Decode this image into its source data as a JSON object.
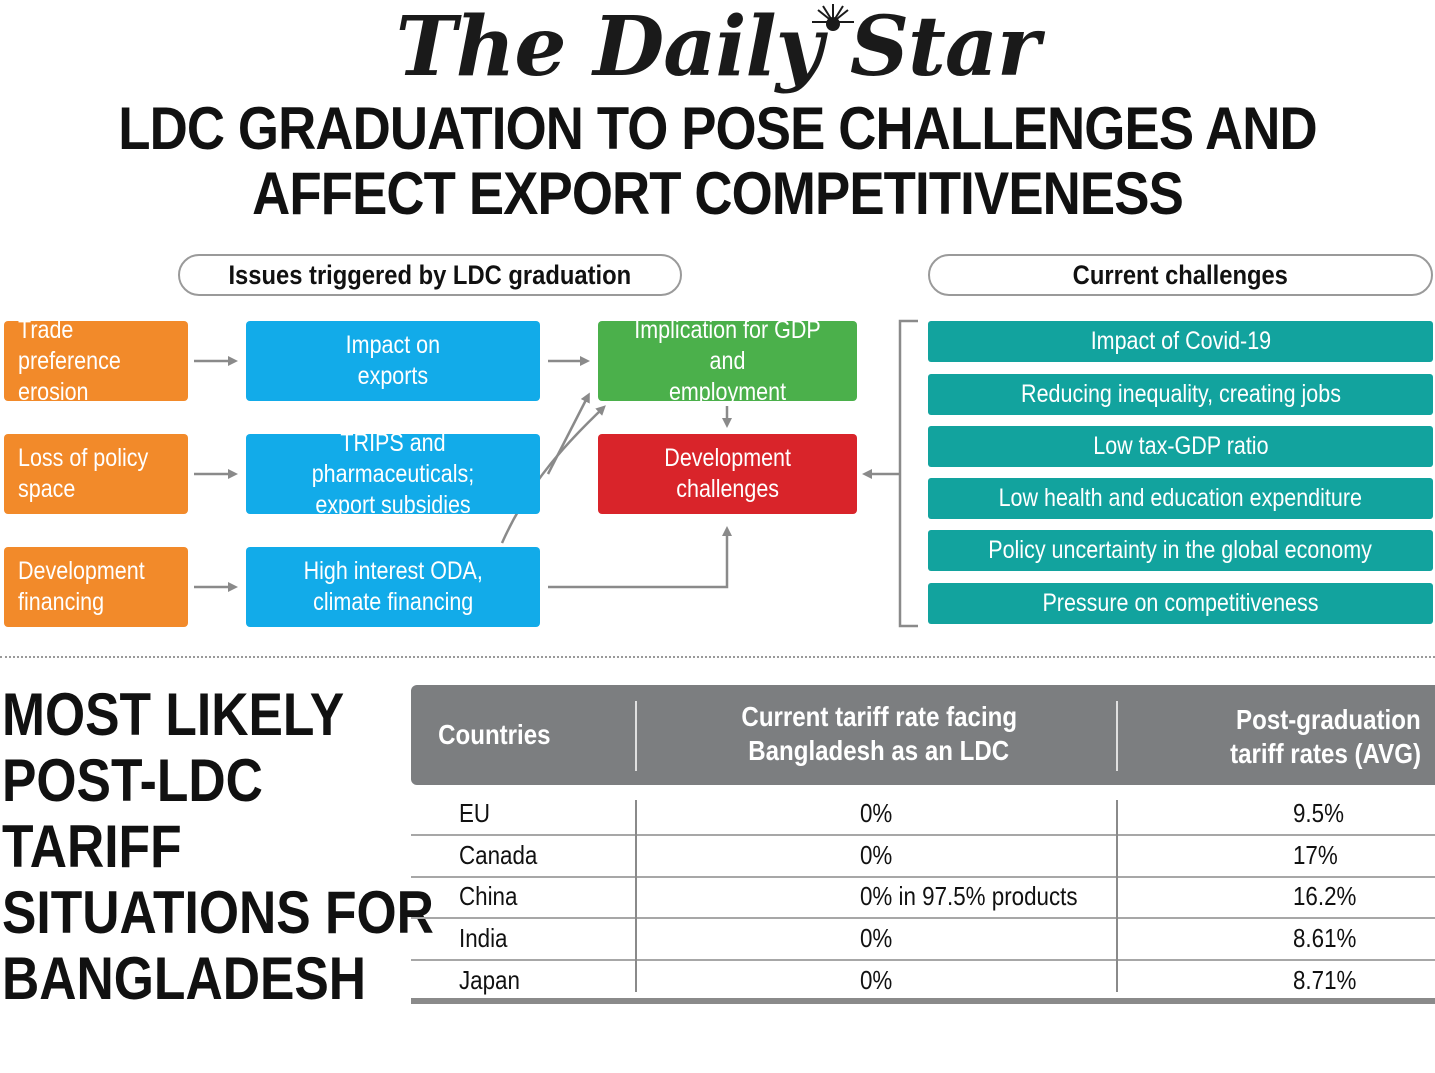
{
  "masthead": "The Daily Star",
  "headline": {
    "line1": "LDC GRADUATION TO POSE CHALLENGES AND",
    "line2": "AFFECT EXPORT COMPETITIVENESS"
  },
  "issues_header": "Issues triggered by LDC graduation",
  "challenges_header": "Current challenges",
  "causes": [
    "Trade preference\nerosion",
    "Loss of policy\nspace",
    "Development\nfinancing"
  ],
  "impacts": [
    "Impact on\nexports",
    "TRIPS and pharmaceuticals;\nexport subsidies",
    "High interest ODA,\nclimate financing"
  ],
  "gdp_box": "Implication for GDP and\nemployment",
  "dev_box": "Development\nchallenges",
  "challenges": [
    "Impact of Covid-19",
    "Reducing inequality, creating jobs",
    "Low tax-GDP ratio",
    "Low health and education expenditure",
    "Policy uncertainty in the global economy",
    "Pressure on competitiveness"
  ],
  "tariff_title": [
    "MOST LIKELY",
    "POST-LDC",
    "TARIFF",
    "SITUATIONS FOR",
    "BANGLADESH"
  ],
  "table": {
    "headers": {
      "country": "Countries",
      "current": [
        "Current tariff rate facing",
        "Bangladesh as an LDC"
      ],
      "post": [
        "Post-graduation",
        "tariff rates (AVG)"
      ]
    },
    "rows": [
      {
        "country": "EU",
        "current": "0%",
        "post": "9.5%"
      },
      {
        "country": "Canada",
        "current": "0%",
        "post": "17%"
      },
      {
        "country": "China",
        "current": "0% in 97.5% products",
        "post": "16.2%"
      },
      {
        "country": "India",
        "current": "0%",
        "post": "8.61%"
      },
      {
        "country": "Japan",
        "current": "0%",
        "post": "8.71%"
      }
    ]
  },
  "colors": {
    "orange": "#f28a2a",
    "blue": "#12abe9",
    "green": "#4bb04b",
    "red": "#d9242a",
    "teal": "#12a39e",
    "table_header": "#7c7e80"
  }
}
